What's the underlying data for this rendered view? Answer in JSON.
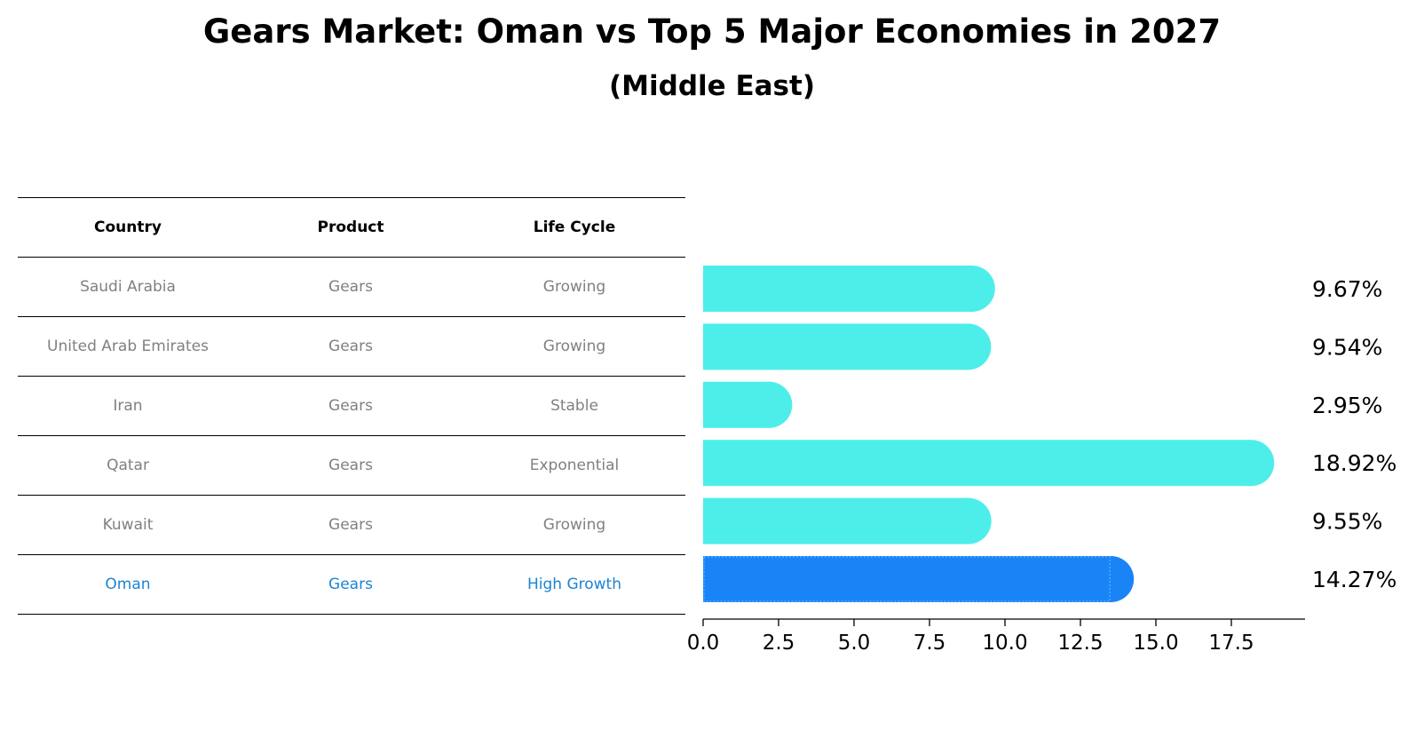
{
  "title": "Gears Market: Oman vs Top 5 Major Economies in 2027",
  "subtitle": "(Middle East)",
  "table": {
    "headers": [
      "Country",
      "Product",
      "Life Cycle"
    ],
    "rows": [
      {
        "country": "Saudi Arabia",
        "product": "Gears",
        "life_cycle": "Growing"
      },
      {
        "country": "United Arab Emirates",
        "product": "Gears",
        "life_cycle": "Growing"
      },
      {
        "country": "Iran",
        "product": "Gears",
        "life_cycle": "Stable"
      },
      {
        "country": "Qatar",
        "product": "Gears",
        "life_cycle": "Exponential"
      },
      {
        "country": "Kuwait",
        "product": "Gears",
        "life_cycle": "Growing"
      },
      {
        "country": "Oman",
        "product": "Gears",
        "life_cycle": "High Growth"
      }
    ],
    "highlight_text_color": "#1b84d4",
    "text_color": "#808080"
  },
  "chart_data": {
    "type": "bar",
    "orientation": "horizontal",
    "title": "Gears Market: Oman vs Top 5 Major Economies in 2027",
    "subtitle": "(Middle East)",
    "categories": [
      "Saudi Arabia",
      "United Arab Emirates",
      "Iran",
      "Qatar",
      "Kuwait",
      "Oman"
    ],
    "values": [
      9.67,
      9.54,
      2.95,
      18.92,
      9.55,
      14.27
    ],
    "labels": [
      "9.67%",
      "9.54%",
      "2.95%",
      "18.92%",
      "9.55%",
      "14.27%"
    ],
    "xlim": [
      0,
      20
    ],
    "xticks": [
      "0.0",
      "2.5",
      "5.0",
      "7.5",
      "10.0",
      "12.5",
      "15.0",
      "17.5"
    ],
    "xtick_values": [
      0,
      2.5,
      5,
      7.5,
      10,
      12.5,
      15,
      17.5
    ],
    "highlight": "Oman",
    "colors": {
      "default_bar": "#4deeea",
      "highlight_bar": "#1984f5",
      "axis": "#000000"
    }
  }
}
